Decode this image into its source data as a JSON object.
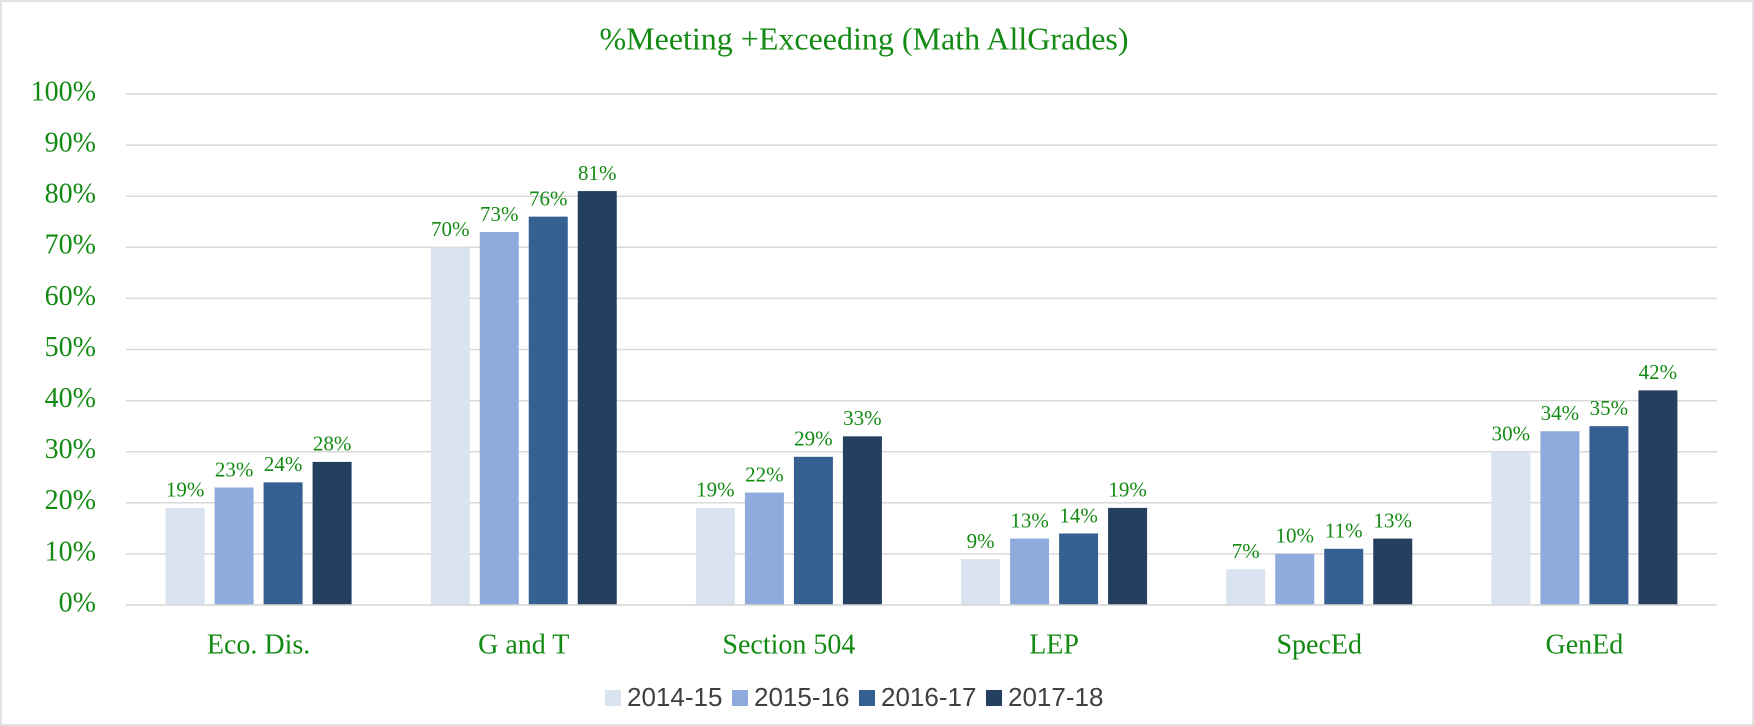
{
  "chart_data": {
    "type": "bar",
    "title": "%Meeting +Exceeding (Math AllGrades)",
    "categories": [
      "Eco. Dis.",
      "G and T",
      "Section 504",
      "LEP",
      "SpecEd",
      "GenEd"
    ],
    "series": [
      {
        "name": "2014-15",
        "color": "#dae3f0",
        "values": [
          19,
          70,
          19,
          9,
          7,
          30
        ],
        "value_labels": [
          "19%",
          "70%",
          "19%",
          "9%",
          "7%",
          "30%"
        ]
      },
      {
        "name": "2015-16",
        "color": "#8faadc",
        "values": [
          23,
          73,
          22,
          13,
          10,
          34
        ],
        "value_labels": [
          "23%",
          "73%",
          "22%",
          "13%",
          "10%",
          "34%"
        ]
      },
      {
        "name": "2016-17",
        "color": "#376092",
        "values": [
          24,
          76,
          29,
          14,
          11,
          35
        ],
        "value_labels": [
          "24%",
          "76%",
          "29%",
          "14%",
          "11%",
          "35%"
        ]
      },
      {
        "name": "2017-18",
        "color": "#243f60",
        "values": [
          28,
          81,
          33,
          19,
          13,
          42
        ],
        "value_labels": [
          "28%",
          "81%",
          "33%",
          "19%",
          "13%",
          "42%"
        ]
      }
    ],
    "ylim": [
      0,
      100
    ],
    "yticks": [
      {
        "value": 0,
        "label": "0%"
      },
      {
        "value": 10,
        "label": "10%"
      },
      {
        "value": 20,
        "label": "20%"
      },
      {
        "value": 30,
        "label": "30%"
      },
      {
        "value": 40,
        "label": "40%"
      },
      {
        "value": 50,
        "label": "50%"
      },
      {
        "value": 60,
        "label": "60%"
      },
      {
        "value": 70,
        "label": "70%"
      },
      {
        "value": 80,
        "label": "80%"
      },
      {
        "value": 90,
        "label": "90%"
      },
      {
        "value": 100,
        "label": "100%"
      }
    ],
    "grid": true,
    "legend": "bottom"
  }
}
